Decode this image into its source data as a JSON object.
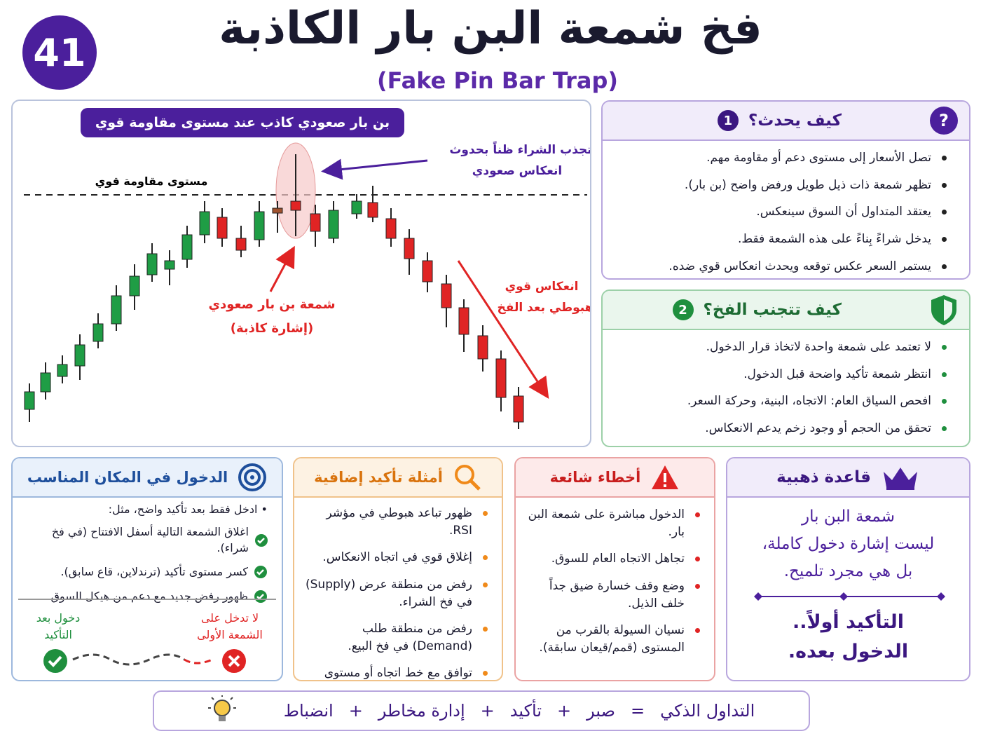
{
  "header": {
    "number": "41",
    "title": "فخ شمعة البن بار الكاذبة",
    "subtitle": "(Fake Pin Bar Trap)"
  },
  "chart_panel": {
    "banner": "بن بار صعودي كاذب عند مستوى مقاومة قوي",
    "resistance_label": "مستوى مقاومة قوي",
    "callout_top": [
      "تجذب الشراء ظناً بحدوث",
      "انعكاس صعودي"
    ],
    "pin_label": [
      "شمعة بن بار صعودي",
      "(إشارة كاذبة)"
    ],
    "drop_label": [
      "انعكاس قوي",
      "هبوطي بعد الفخ"
    ]
  },
  "how": {
    "number": "1",
    "title": "كيف يحدث؟",
    "items": [
      "تصل الأسعار إلى مستوى دعم أو مقاومة مهم.",
      "تظهر شمعة ذات ذيل طويل ورفض واضح (بن بار).",
      "يعتقد المتداول أن السوق سينعكس.",
      "يدخل شراءً بِناءً على هذه الشمعة فقط.",
      "يستمر السعر عكس توقعه ويحدث انعكاس قوي ضده."
    ]
  },
  "avoid": {
    "number": "2",
    "title": "كيف تتجنب الفخ؟",
    "items": [
      "لا تعتمد على شمعة واحدة لاتخاذ قرار الدخول.",
      "انتظر شمعة تأكيد واضحة قبل الدخول.",
      "افحص السياق العام: الاتجاه، البنية، وحركة السعر.",
      "تحقق من الحجم أو وجود زخم يدعم الانعكاس."
    ]
  },
  "entry": {
    "title": "الدخول في المكان المناسب",
    "intro": "ادخل فقط بعد تأكيد واضح، مثل:",
    "items": [
      "اغلاق الشمعة التالية أسفل الافتتاح (في فخ شراء).",
      "كسر مستوى تأكيد (ترندلاين، قاع سابق).",
      "ظهور رفض جديد مع دعم من هيكل السوق."
    ],
    "good_label": [
      "دخول بعد",
      "التأكيد"
    ],
    "bad_label": [
      "لا تدخل على",
      "الشمعة الأولى"
    ]
  },
  "examples": {
    "title": "أمثلة تأكيد إضافية",
    "items": [
      "ظهور تباعد هبوطي في مؤشر RSI.",
      "إغلاق قوي في اتجاه الانعكاس.",
      "رفض من منطقة عرض (Supply) في فخ الشراء.",
      "رفض من منطقة طلب (Demand) في فخ البيع.",
      "توافق مع خط اتجاه أو مستوى فيبوناتشي."
    ]
  },
  "mistakes": {
    "title": "أخطاء شائعة",
    "items": [
      "الدخول مباشرة على شمعة البن بار.",
      "تجاهل الاتجاه العام للسوق.",
      "وضع وقف خسارة ضيق جداً خلف الذيل.",
      "نسيان السيولة بالقرب من المستوى (قمم/قيعان سابقة)."
    ]
  },
  "golden": {
    "title": "قاعدة ذهبية",
    "lines": [
      "شمعة البن بار",
      "ليست إشارة دخول كاملة،",
      "بل هي مجرد تلميح."
    ],
    "emphasis": [
      "التأكيد أولاً..",
      "الدخول بعده."
    ]
  },
  "footer": {
    "terms": [
      "التداول الذكي",
      "=",
      "صبر",
      "+",
      "تأكيد",
      "+",
      "إدارة مخاطر",
      "+",
      "انضباط"
    ]
  }
}
